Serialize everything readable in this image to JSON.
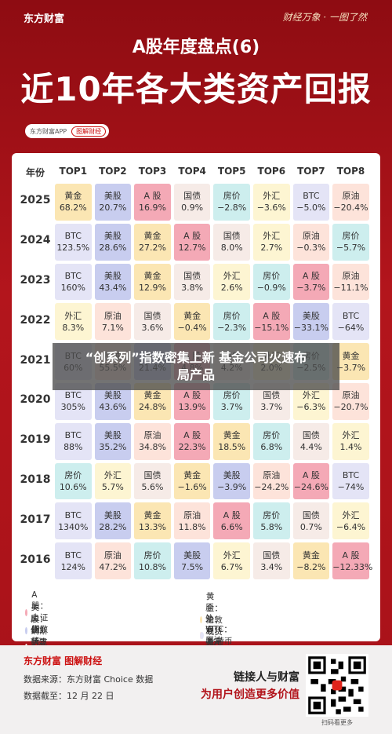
{
  "header": {
    "brand": "东方财富",
    "slogan": "财经万象 · 一图了然",
    "series": "A股年度盘点(6)",
    "title": "近10年各大类资产回报",
    "app": "东方财富APP",
    "app_tag": "图解财经"
  },
  "table": {
    "columns": [
      "年份",
      "TOP1",
      "TOP2",
      "TOP3",
      "TOP4",
      "TOP5",
      "TOP6",
      "TOP7",
      "TOP8"
    ],
    "rows": [
      {
        "year": "2025",
        "cells": [
          {
            "asset": "黄金",
            "value": "68.2%",
            "color": "#fbe6b3"
          },
          {
            "asset": "美股",
            "value": "20.7%",
            "color": "#c8cdef"
          },
          {
            "asset": "A 股",
            "value": "16.9%",
            "color": "#f4a9b6"
          },
          {
            "asset": "国债",
            "value": "0.9%",
            "color": "#f6ebe7"
          },
          {
            "asset": "房价",
            "value": "−2.8%",
            "color": "#cdeeee"
          },
          {
            "asset": "外汇",
            "value": "−3.6%",
            "color": "#fdf5d2"
          },
          {
            "asset": "BTC",
            "value": "−5.0%",
            "color": "#e4e4f6"
          },
          {
            "asset": "原油",
            "value": "−20.4%",
            "color": "#fde3da"
          }
        ]
      },
      {
        "year": "2024",
        "cells": [
          {
            "asset": "BTC",
            "value": "123.5%",
            "color": "#e4e4f6"
          },
          {
            "asset": "美股",
            "value": "28.6%",
            "color": "#c8cdef"
          },
          {
            "asset": "黄金",
            "value": "27.2%",
            "color": "#fbe6b3"
          },
          {
            "asset": "A 股",
            "value": "12.7%",
            "color": "#f4a9b6"
          },
          {
            "asset": "国债",
            "value": "8.0%",
            "color": "#f6ebe7"
          },
          {
            "asset": "外汇",
            "value": "2.7%",
            "color": "#fdf5d2"
          },
          {
            "asset": "原油",
            "value": "−0.3%",
            "color": "#fde3da"
          },
          {
            "asset": "房价",
            "value": "−5.7%",
            "color": "#cdeeee"
          }
        ]
      },
      {
        "year": "2023",
        "cells": [
          {
            "asset": "BTC",
            "value": "160%",
            "color": "#e4e4f6"
          },
          {
            "asset": "美股",
            "value": "43.4%",
            "color": "#c8cdef"
          },
          {
            "asset": "黄金",
            "value": "12.9%",
            "color": "#fbe6b3"
          },
          {
            "asset": "国债",
            "value": "3.8%",
            "color": "#f6ebe7"
          },
          {
            "asset": "外汇",
            "value": "2.6%",
            "color": "#fdf5d2"
          },
          {
            "asset": "房价",
            "value": "−0.9%",
            "color": "#cdeeee"
          },
          {
            "asset": "A 股",
            "value": "−3.7%",
            "color": "#f4a9b6"
          },
          {
            "asset": "原油",
            "value": "−11.1%",
            "color": "#fde3da"
          }
        ]
      },
      {
        "year": "2022",
        "cells": [
          {
            "asset": "外汇",
            "value": "8.3%",
            "color": "#fdf5d2"
          },
          {
            "asset": "原油",
            "value": "7.1%",
            "color": "#fde3da"
          },
          {
            "asset": "国债",
            "value": "3.6%",
            "color": "#f6ebe7"
          },
          {
            "asset": "黄金",
            "value": "−0.4%",
            "color": "#fbe6b3"
          },
          {
            "asset": "房价",
            "value": "−2.3%",
            "color": "#cdeeee"
          },
          {
            "asset": "A 股",
            "value": "−15.1%",
            "color": "#f4a9b6"
          },
          {
            "asset": "美股",
            "value": "−33.1%",
            "color": "#c8cdef"
          },
          {
            "asset": "BTC",
            "value": "−64%",
            "color": "#e4e4f6"
          }
        ]
      },
      {
        "year": "2021",
        "cells": [
          {
            "asset": "BTC",
            "value": "60%",
            "color": "#e4e4f6"
          },
          {
            "asset": "原油",
            "value": "55.5%",
            "color": "#fde3da"
          },
          {
            "asset": "美股",
            "value": "21.4%",
            "color": "#c8cdef"
          },
          {
            "asset": "A 股",
            "value": "4.8%",
            "color": "#f4a9b6"
          },
          {
            "asset": "国债",
            "value": "4.2%",
            "color": "#f6ebe7"
          },
          {
            "asset": "外汇",
            "value": "2.0%",
            "color": "#fdf5d2"
          },
          {
            "asset": "房价",
            "value": "−2.5%",
            "color": "#cdeeee"
          },
          {
            "asset": "黄金",
            "value": "−3.7%",
            "color": "#fbe6b3"
          }
        ]
      },
      {
        "year": "2020",
        "cells": [
          {
            "asset": "BTC",
            "value": "305%",
            "color": "#e4e4f6"
          },
          {
            "asset": "美股",
            "value": "43.6%",
            "color": "#c8cdef"
          },
          {
            "asset": "黄金",
            "value": "24.8%",
            "color": "#fbe6b3"
          },
          {
            "asset": "A 股",
            "value": "13.9%",
            "color": "#f4a9b6"
          },
          {
            "asset": "房价",
            "value": "3.7%",
            "color": "#cdeeee"
          },
          {
            "asset": "国债",
            "value": "3.7%",
            "color": "#f6ebe7"
          },
          {
            "asset": "外汇",
            "value": "−6.3%",
            "color": "#fdf5d2"
          },
          {
            "asset": "原油",
            "value": "−20.7%",
            "color": "#fde3da"
          }
        ]
      },
      {
        "year": "2019",
        "cells": [
          {
            "asset": "BTC",
            "value": "88%",
            "color": "#e4e4f6"
          },
          {
            "asset": "美股",
            "value": "35.2%",
            "color": "#c8cdef"
          },
          {
            "asset": "原油",
            "value": "34.8%",
            "color": "#fde3da"
          },
          {
            "asset": "A 股",
            "value": "22.3%",
            "color": "#f4a9b6"
          },
          {
            "asset": "黄金",
            "value": "18.5%",
            "color": "#fbe6b3"
          },
          {
            "asset": "房价",
            "value": "6.8%",
            "color": "#cdeeee"
          },
          {
            "asset": "国债",
            "value": "4.4%",
            "color": "#f6ebe7"
          },
          {
            "asset": "外汇",
            "value": "1.4%",
            "color": "#fdf5d2"
          }
        ]
      },
      {
        "year": "2018",
        "cells": [
          {
            "asset": "房价",
            "value": "10.6%",
            "color": "#cdeeee"
          },
          {
            "asset": "外汇",
            "value": "5.7%",
            "color": "#fdf5d2"
          },
          {
            "asset": "国债",
            "value": "5.6%",
            "color": "#f6ebe7"
          },
          {
            "asset": "黄金",
            "value": "−1.6%",
            "color": "#fbe6b3"
          },
          {
            "asset": "美股",
            "value": "−3.9%",
            "color": "#c8cdef"
          },
          {
            "asset": "原油",
            "value": "−24.2%",
            "color": "#fde3da"
          },
          {
            "asset": "A 股",
            "value": "−24.6%",
            "color": "#f4a9b6"
          },
          {
            "asset": "BTC",
            "value": "−74%",
            "color": "#e4e4f6"
          }
        ]
      },
      {
        "year": "2017",
        "cells": [
          {
            "asset": "BTC",
            "value": "1340%",
            "color": "#e4e4f6"
          },
          {
            "asset": "美股",
            "value": "28.2%",
            "color": "#c8cdef"
          },
          {
            "asset": "黄金",
            "value": "13.3%",
            "color": "#fbe6b3"
          },
          {
            "asset": "原油",
            "value": "11.8%",
            "color": "#fde3da"
          },
          {
            "asset": "A 股",
            "value": "6.6%",
            "color": "#f4a9b6"
          },
          {
            "asset": "房价",
            "value": "5.8%",
            "color": "#cdeeee"
          },
          {
            "asset": "国债",
            "value": "0.7%",
            "color": "#f6ebe7"
          },
          {
            "asset": "外汇",
            "value": "−6.4%",
            "color": "#fdf5d2"
          }
        ]
      },
      {
        "year": "2016",
        "cells": [
          {
            "asset": "BTC",
            "value": "124%",
            "color": "#e4e4f6"
          },
          {
            "asset": "原油",
            "value": "47.2%",
            "color": "#fde3da"
          },
          {
            "asset": "房价",
            "value": "10.8%",
            "color": "#cdeeee"
          },
          {
            "asset": "美股",
            "value": "7.5%",
            "color": "#c8cdef"
          },
          {
            "asset": "外汇",
            "value": "6.7%",
            "color": "#fdf5d2"
          },
          {
            "asset": "国债",
            "value": "3.4%",
            "color": "#f6ebe7"
          },
          {
            "asset": "黄金",
            "value": "−8.2%",
            "color": "#fbe6b3"
          },
          {
            "asset": "A 股",
            "value": "−12.33%",
            "color": "#f4a9b6"
          }
        ]
      }
    ]
  },
  "legend": [
    {
      "text": "A 股：上证指数",
      "color": "#f4a9b6"
    },
    {
      "text": "黄金：伦敦现货金",
      "color": "#fbe6b3"
    },
    {
      "text": "美股：纳斯达克指数",
      "color": "#c8cdef"
    },
    {
      "text": "原油：WTI 原油期货价格",
      "color": "#fde3da"
    },
    {
      "text": "房价：新建商品住宅价格指数",
      "color": "#cdeeee"
    },
    {
      "text": "外汇：美元兑在岸人民币汇率",
      "color": "#fdf5d2"
    },
    {
      "text": "国债：国债指数",
      "color": "#f6ebe7"
    },
    {
      "text": "BTC：比特币",
      "color": "#e4e4f6"
    }
  ],
  "overlay": "“创系列”指数密集上新 基金公司火速布局产品",
  "footer": {
    "brand": "东方财富 图解财经",
    "source": "数据来源：东方财富 Choice 数据",
    "date": "数据截至：12 月 22 日",
    "tagline1": "链接人与财富",
    "tagline2": "为用户创造更多价值",
    "qr_caption": "扫码看更多"
  }
}
